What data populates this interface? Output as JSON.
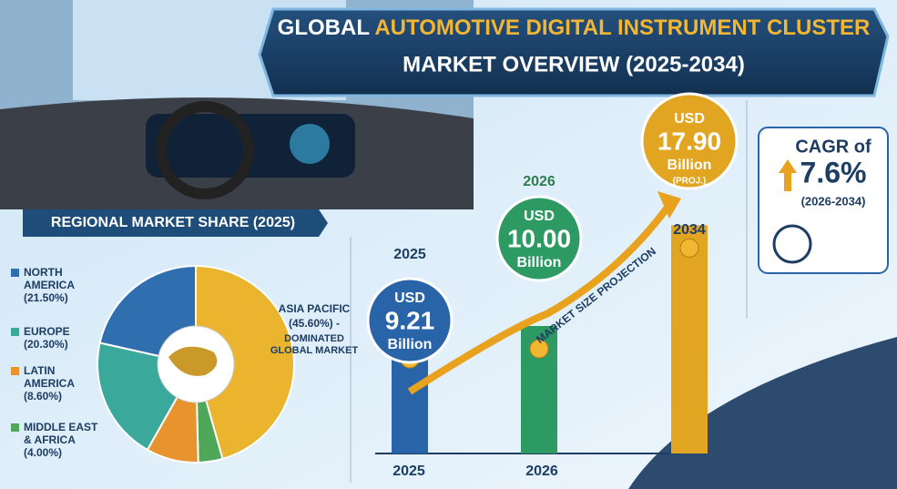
{
  "title": {
    "lead": "GLOBAL",
    "accent": "AUTOMOTIVE DIGITAL INSTRUMENT CLUSTER",
    "line2": "MARKET OVERVIEW (2025-2034)"
  },
  "regional": {
    "title": "REGIONAL MARKET SHARE (2025)",
    "type": "pie",
    "segments": [
      {
        "name": "NORTH AMERICA",
        "value": 21.5,
        "label": "(21.50%)",
        "color": "#2f6fb0"
      },
      {
        "name": "EUROPE",
        "value": 20.3,
        "label": "(20.30%)",
        "color": "#3aa89a"
      },
      {
        "name": "LATIN AMERICA",
        "value": 8.6,
        "label": "(8.60%)",
        "color": "#e7942f"
      },
      {
        "name": "MIDDLE EAST & AFRICA",
        "value": 4.0,
        "label": "(4.00%)",
        "color": "#4fa85a"
      },
      {
        "name": "ASIA PACIFIC",
        "value": 45.6,
        "label": "(45.60%) -",
        "note": "DOMINATED GLOBAL MARKET",
        "color": "#eab42e"
      }
    ]
  },
  "projection": {
    "arrow_label": "MARKET SIZE PROJECTION",
    "currency": "USD",
    "unit": "Billion",
    "points": [
      {
        "year": "2025",
        "value": 9.21,
        "color": "#2a64a8"
      },
      {
        "year": "2026",
        "value": {
          "value": 10,
          "label": "10.00"
        },
        "color": "#2e9a63"
      },
      {
        "year": "2034",
        "value": {
          "value": 17.9,
          "label": "17.90"
        },
        "note": "(PROJ.)",
        "color": "#e2a521"
      }
    ],
    "x_axis": [
      "2025",
      "2026"
    ]
  },
  "cagr": {
    "label": "CAGR of",
    "value": {
      "value": 7.6,
      "label": "7.6%"
    },
    "period": "(2026-2034)"
  }
}
